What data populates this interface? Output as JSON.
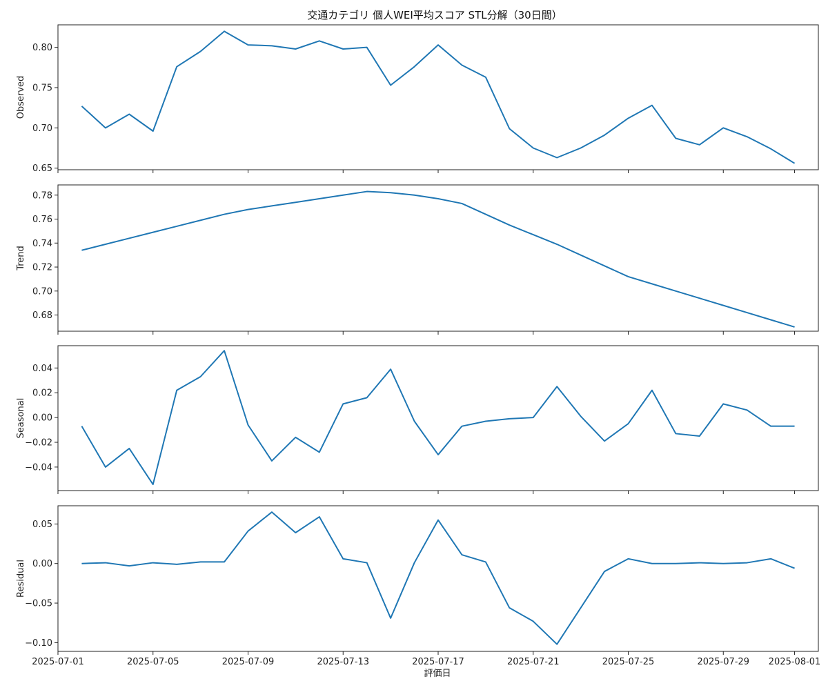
{
  "chart_data": {
    "type": "line",
    "title": "交通カテゴリ 個人WEI平均スコア STL分解（30日間）",
    "xlabel": "評価日",
    "x": [
      "2025-07-02",
      "2025-07-03",
      "2025-07-04",
      "2025-07-05",
      "2025-07-06",
      "2025-07-07",
      "2025-07-08",
      "2025-07-09",
      "2025-07-10",
      "2025-07-11",
      "2025-07-12",
      "2025-07-13",
      "2025-07-14",
      "2025-07-15",
      "2025-07-16",
      "2025-07-17",
      "2025-07-18",
      "2025-07-19",
      "2025-07-20",
      "2025-07-21",
      "2025-07-22",
      "2025-07-23",
      "2025-07-24",
      "2025-07-25",
      "2025-07-26",
      "2025-07-27",
      "2025-07-28",
      "2025-07-29",
      "2025-07-30",
      "2025-07-31",
      "2025-08-01"
    ],
    "xticks": [
      "2025-07-01",
      "2025-07-05",
      "2025-07-09",
      "2025-07-13",
      "2025-07-17",
      "2025-07-21",
      "2025-07-25",
      "2025-07-29",
      "2025-08-01"
    ],
    "xlim": [
      "2025-07-01",
      "2025-08-02"
    ],
    "panels": [
      {
        "ylabel": "Observed",
        "ylim": [
          0.648,
          0.828
        ],
        "yticks": [
          "0.65",
          "0.70",
          "0.75",
          "0.80"
        ],
        "values": [
          0.727,
          0.7,
          0.717,
          0.696,
          0.776,
          0.795,
          0.82,
          0.803,
          0.802,
          0.798,
          0.808,
          0.798,
          0.8,
          0.753,
          0.776,
          0.803,
          0.778,
          0.763,
          0.699,
          0.675,
          0.663,
          0.675,
          0.691,
          0.712,
          0.728,
          0.687,
          0.679,
          0.7,
          0.689,
          0.674,
          0.656
        ]
      },
      {
        "ylabel": "Trend",
        "ylim": [
          0.6665,
          0.7885
        ],
        "yticks": [
          "0.68",
          "0.70",
          "0.72",
          "0.74",
          "0.76",
          "0.78"
        ],
        "values": [
          0.734,
          0.739,
          0.744,
          0.749,
          0.754,
          0.759,
          0.764,
          0.768,
          0.771,
          0.774,
          0.777,
          0.78,
          0.783,
          0.782,
          0.78,
          0.777,
          0.773,
          0.764,
          0.755,
          0.747,
          0.739,
          0.73,
          0.721,
          0.712,
          0.706,
          0.7,
          0.694,
          0.688,
          0.682,
          0.676,
          0.67
        ]
      },
      {
        "ylabel": "Seasonal",
        "ylim": [
          -0.059,
          0.058
        ],
        "yticks": [
          "−0.04",
          "−0.02",
          "0.00",
          "0.02",
          "0.04"
        ],
        "values": [
          -0.007,
          -0.04,
          -0.025,
          -0.054,
          0.022,
          0.033,
          0.054,
          -0.006,
          -0.035,
          -0.016,
          -0.028,
          0.011,
          0.016,
          0.039,
          -0.003,
          -0.03,
          -0.007,
          -0.003,
          -0.001,
          0.0,
          0.025,
          0.001,
          -0.019,
          -0.005,
          0.022,
          -0.013,
          -0.015,
          0.011,
          0.006,
          -0.007,
          -0.007
        ]
      },
      {
        "ylabel": "Residual",
        "ylim": [
          -0.111,
          0.073
        ],
        "yticks": [
          "−0.10",
          "−0.05",
          "0.00",
          "0.05"
        ],
        "values": [
          0.0,
          0.001,
          -0.003,
          0.001,
          -0.001,
          0.002,
          0.002,
          0.041,
          0.065,
          0.039,
          0.059,
          0.006,
          0.001,
          -0.069,
          0.001,
          0.055,
          0.011,
          0.002,
          -0.056,
          -0.073,
          -0.102,
          -0.056,
          -0.01,
          0.006,
          0.0,
          0.0,
          0.001,
          0.0,
          0.001,
          0.006,
          -0.006
        ]
      }
    ]
  }
}
